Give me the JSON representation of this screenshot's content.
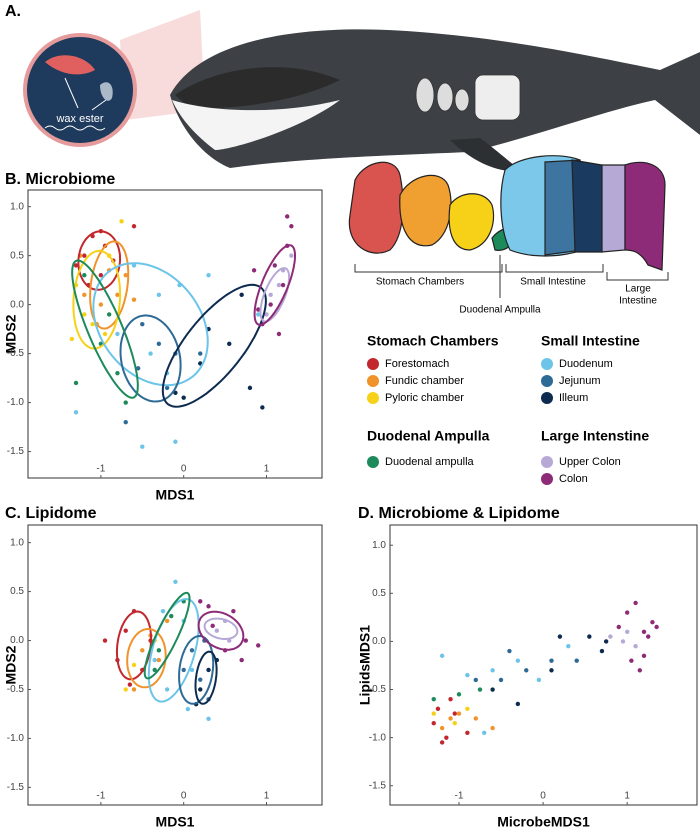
{
  "illustration": {
    "panel_label": "A.",
    "inset_label": "wax ester"
  },
  "anatomy": {
    "stomach": "Stomach Chambers",
    "small": "Small Intestine",
    "large": [
      "Large",
      "Intestine"
    ],
    "ampulla": "Duodenal Ampulla"
  },
  "legend": {
    "groups": [
      {
        "title": "Stomach Chambers",
        "items": [
          "Forestomach",
          "Fundic chamber",
          "Pyloric chamber"
        ]
      },
      {
        "title": "Small Intestine",
        "items": [
          "Duodenum",
          "Jejunum",
          "Illeum"
        ]
      },
      {
        "title": "Duodenal Ampulla",
        "items": [
          "Duodenal ampulla"
        ]
      },
      {
        "title": "Large Intenstine",
        "items": [
          "Upper Colon",
          "Colon"
        ]
      }
    ]
  },
  "chart_data": [
    {
      "type": "scatter",
      "title": "B. Microbiome",
      "x_label": "MDS1",
      "y_label": "MDS2",
      "xlim": [
        -1.88,
        1.67
      ],
      "ylim": [
        -1.77,
        1.17
      ],
      "xticks": [
        -1,
        0,
        1
      ],
      "yticks": [
        -1.5,
        {
          "value": -1,
          "label": "-1.0"
        },
        -0.5,
        {
          "value": 0,
          "label": "0.0"
        },
        0.5,
        {
          "value": 1,
          "label": "1.0"
        }
      ],
      "series": [
        {
          "color": "#c1272d",
          "x": [
            -1.1,
            -0.95,
            -1.2,
            -1.0,
            -0.85,
            -1.15,
            -1.3,
            -1.0,
            -0.6
          ],
          "y": [
            0.7,
            0.6,
            0.5,
            0.3,
            0.45,
            0.2,
            0.4,
            0.75,
            0.8
          ],
          "ellipse": {
            "cx": -1.02,
            "cy": 0.45,
            "rx": 0.3,
            "ry": 0.25,
            "angle": 80
          }
        },
        {
          "color": "#f0932b",
          "x": [
            -1.2,
            -0.9,
            -0.7,
            -1.0,
            -1.25,
            -0.8,
            -0.6,
            -1.05
          ],
          "y": [
            0.1,
            0.35,
            0.3,
            0.0,
            0.5,
            0.1,
            0.05,
            -0.2
          ],
          "ellipse": {
            "cx": -0.9,
            "cy": 0.2,
            "rx": 0.45,
            "ry": 0.22,
            "angle": 80
          }
        },
        {
          "color": "#f7d117",
          "x": [
            -1.3,
            -1.1,
            -0.9,
            -0.75,
            -1.2,
            -0.95,
            -1.35
          ],
          "y": [
            0.2,
            -0.2,
            0.5,
            0.85,
            -0.1,
            -0.3,
            -0.35
          ],
          "ellipse": {
            "cx": -1.05,
            "cy": 0.05,
            "rx": 0.5,
            "ry": 0.28,
            "angle": 85
          }
        },
        {
          "color": "#6cc5e9",
          "x": [
            -0.6,
            -0.3,
            -0.05,
            -0.8,
            -0.5,
            -1.3,
            -0.2,
            -0.4,
            0.3,
            0.9,
            -0.1
          ],
          "y": [
            0.4,
            0.1,
            0.2,
            -0.3,
            -1.45,
            -1.1,
            -0.7,
            -0.5,
            0.3,
            -0.1,
            -1.4
          ],
          "ellipse": {
            "cx": -0.4,
            "cy": -0.2,
            "rx": 0.75,
            "ry": 0.55,
            "angle": -35
          }
        },
        {
          "color": "#2e6a96",
          "x": [
            -0.5,
            -0.3,
            -0.2,
            -0.55,
            -0.1,
            -0.7,
            0.2
          ],
          "y": [
            -0.2,
            -0.4,
            -0.85,
            -0.65,
            -0.5,
            -1.2,
            -0.5
          ],
          "ellipse": {
            "cx": -0.4,
            "cy": -0.55,
            "rx": 0.45,
            "ry": 0.35,
            "angle": -70
          }
        },
        {
          "color": "#0d2b4f",
          "x": [
            0.0,
            0.3,
            0.7,
            0.55,
            -0.1,
            0.8,
            0.95,
            0.2
          ],
          "y": [
            -0.95,
            -0.25,
            0.1,
            -0.4,
            -0.9,
            -0.85,
            -1.05,
            -0.6
          ],
          "ellipse": {
            "cx": 0.37,
            "cy": -0.42,
            "rx": 0.82,
            "ry": 0.32,
            "angle": 45
          }
        },
        {
          "color": "#1c8a5a",
          "x": [
            -1.2,
            -1.0,
            -0.8,
            -1.3,
            -0.9,
            -0.7
          ],
          "y": [
            0.3,
            -0.4,
            -0.7,
            -0.8,
            -0.1,
            -1.0
          ],
          "ellipse": {
            "cx": -0.95,
            "cy": -0.25,
            "rx": 0.78,
            "ry": 0.2,
            "angle": -63
          }
        },
        {
          "color": "#b7a9d6",
          "x": [
            1.05,
            1.15,
            1.2,
            1.0,
            1.3
          ],
          "y": [
            0.1,
            0.2,
            0.35,
            -0.1,
            0.5
          ],
          "ellipse": {
            "cx": 1.1,
            "cy": 0.1,
            "rx": 0.3,
            "ry": 0.12,
            "angle": 63
          }
        },
        {
          "color": "#8e2b78",
          "x": [
            1.25,
            1.3,
            1.1,
            1.05,
            0.95,
            1.2,
            1.15,
            0.9,
            1.25,
            0.85
          ],
          "y": [
            0.9,
            0.8,
            0.4,
            0.0,
            -0.2,
            0.2,
            -0.3,
            -0.05,
            0.6,
            0.35
          ],
          "ellipse": {
            "cx": 1.1,
            "cy": 0.2,
            "rx": 0.45,
            "ry": 0.15,
            "angle": 63
          }
        }
      ]
    },
    {
      "type": "scatter",
      "title": "C. Lipidome",
      "x_label": "MDS1",
      "y_label": "MDS2",
      "xlim": [
        -1.88,
        1.67
      ],
      "ylim": [
        -1.68,
        1.18
      ],
      "xticks": [
        -1,
        0,
        1
      ],
      "yticks": [
        -1.5,
        {
          "value": -1,
          "label": "-1.0"
        },
        -0.5,
        {
          "value": 0,
          "label": "0.0"
        },
        0.5,
        {
          "value": 1,
          "label": "1.0"
        }
      ],
      "series": [
        {
          "color": "#c1272d",
          "x": [
            -0.7,
            -0.5,
            -0.8,
            -0.6,
            -0.95,
            -0.4,
            -0.65
          ],
          "y": [
            0.1,
            -0.3,
            -0.2,
            0.3,
            0.0,
            0.0,
            -0.45
          ],
          "ellipse": {
            "cx": -0.6,
            "cy": -0.05,
            "rx": 0.35,
            "ry": 0.2,
            "angle": 80
          }
        },
        {
          "color": "#f0932b",
          "x": [
            -0.5,
            -0.3,
            -0.6,
            -0.2,
            -0.4
          ],
          "y": [
            -0.1,
            -0.2,
            -0.5,
            0.2,
            0.05
          ],
          "ellipse": {
            "cx": -0.45,
            "cy": -0.18,
            "rx": 0.3,
            "ry": 0.23,
            "angle": 80
          }
        },
        {
          "color": "#f7d117",
          "x": [
            -0.6,
            -0.35,
            -0.7
          ],
          "y": [
            -0.25,
            0.0,
            -0.5
          ]
        },
        {
          "color": "#6cc5e9",
          "x": [
            -0.1,
            0.0,
            -0.2,
            0.05,
            0.3,
            -0.25,
            0.1,
            -0.35
          ],
          "y": [
            0.6,
            0.2,
            -0.5,
            -0.7,
            -0.8,
            0.3,
            -0.3,
            -0.2
          ],
          "ellipse": {
            "cx": -0.12,
            "cy": -0.1,
            "rx": 0.55,
            "ry": 0.25,
            "angle": 70
          }
        },
        {
          "color": "#2e6a96",
          "x": [
            0.1,
            0.2,
            0.3,
            0.0,
            0.25
          ],
          "y": [
            -0.1,
            -0.4,
            -0.6,
            -0.3,
            0.0
          ],
          "ellipse": {
            "cx": 0.15,
            "cy": -0.3,
            "rx": 0.35,
            "ry": 0.2,
            "angle": 80
          }
        },
        {
          "color": "#0d2b4f",
          "x": [
            0.2,
            0.3,
            0.4,
            0.15
          ],
          "y": [
            -0.5,
            -0.3,
            -0.2,
            -0.65
          ],
          "ellipse": {
            "cx": 0.27,
            "cy": -0.38,
            "rx": 0.27,
            "ry": 0.12,
            "angle": 80
          }
        },
        {
          "color": "#1c8a5a",
          "x": [
            -0.3,
            -0.15,
            -0.35,
            0.0
          ],
          "y": [
            -0.1,
            0.25,
            -0.3,
            0.4
          ],
          "ellipse": {
            "cx": -0.2,
            "cy": 0.05,
            "rx": 0.5,
            "ry": 0.12,
            "angle": 60
          }
        },
        {
          "color": "#b7a9d6",
          "x": [
            0.4,
            0.5,
            0.55
          ],
          "y": [
            0.1,
            0.2,
            0.0
          ],
          "ellipse": {
            "cx": 0.45,
            "cy": 0.12,
            "rx": 0.2,
            "ry": 0.1,
            "angle": -10
          }
        },
        {
          "color": "#8e2b78",
          "x": [
            0.3,
            0.6,
            0.75,
            0.5,
            0.9,
            0.2,
            0.7,
            0.35
          ],
          "y": [
            0.35,
            0.3,
            0.0,
            -0.1,
            -0.05,
            0.4,
            -0.2,
            0.15
          ],
          "ellipse": {
            "cx": 0.45,
            "cy": 0.1,
            "rx": 0.28,
            "ry": 0.18,
            "angle": -20
          }
        }
      ]
    },
    {
      "type": "scatter",
      "title": "D. Microbiome & Lipidome",
      "x_label": "MicrobeMDS1",
      "y_label": "LipidsMDS1",
      "xlim": [
        -1.82,
        1.83
      ],
      "ylim": [
        -1.7,
        1.21
      ],
      "xticks": [
        -1,
        0,
        1
      ],
      "yticks": [
        -1.5,
        {
          "value": -1,
          "label": "-1.0"
        },
        -0.5,
        {
          "value": 0,
          "label": "0.0"
        },
        0.5,
        {
          "value": 1,
          "label": "1.0"
        }
      ],
      "series": [
        {
          "color": "#c1272d",
          "x": [
            -1.3,
            -1.2,
            -1.1,
            -1.25,
            -0.9,
            -1.05,
            -1.15
          ],
          "y": [
            -0.85,
            -1.05,
            -0.6,
            -0.7,
            -0.95,
            -0.75,
            -1.0
          ]
        },
        {
          "color": "#f0932b",
          "x": [
            -1.2,
            -1.0,
            -0.8,
            -1.1,
            -0.6
          ],
          "y": [
            -0.9,
            -0.75,
            -0.8,
            -0.8,
            -0.9
          ]
        },
        {
          "color": "#f7d117",
          "x": [
            -1.3,
            -1.05,
            -0.9
          ],
          "y": [
            -0.75,
            -0.85,
            -0.7
          ]
        },
        {
          "color": "#6cc5e9",
          "x": [
            -1.2,
            -0.9,
            -0.6,
            -0.7,
            -0.3,
            0.3,
            -0.05
          ],
          "y": [
            -0.15,
            -0.35,
            -0.3,
            -0.95,
            -0.2,
            -0.05,
            -0.4
          ]
        },
        {
          "color": "#2e6a96",
          "x": [
            -0.8,
            -0.5,
            -0.4,
            -0.2,
            0.1,
            0.4
          ],
          "y": [
            -0.4,
            -0.4,
            -0.1,
            -0.3,
            -0.2,
            -0.2
          ]
        },
        {
          "color": "#0d2b4f",
          "x": [
            -0.6,
            -0.3,
            0.1,
            0.2,
            0.55,
            0.75,
            0.7
          ],
          "y": [
            -0.5,
            -0.65,
            -0.3,
            0.05,
            0.05,
            0.0,
            -0.1
          ]
        },
        {
          "color": "#1c8a5a",
          "x": [
            -1.3,
            -1.0,
            -0.75
          ],
          "y": [
            -0.6,
            -0.55,
            -0.5
          ]
        },
        {
          "color": "#b7a9d6",
          "x": [
            0.95,
            1.0,
            1.1,
            0.8
          ],
          "y": [
            0.0,
            0.1,
            -0.05,
            0.05
          ]
        },
        {
          "color": "#8e2b78",
          "x": [
            1.0,
            1.1,
            1.2,
            1.3,
            1.05,
            1.15,
            1.25,
            0.9,
            1.35,
            1.2
          ],
          "y": [
            0.3,
            0.4,
            0.1,
            0.2,
            -0.2,
            -0.3,
            0.05,
            0.15,
            0.15,
            -0.15
          ]
        }
      ]
    }
  ]
}
